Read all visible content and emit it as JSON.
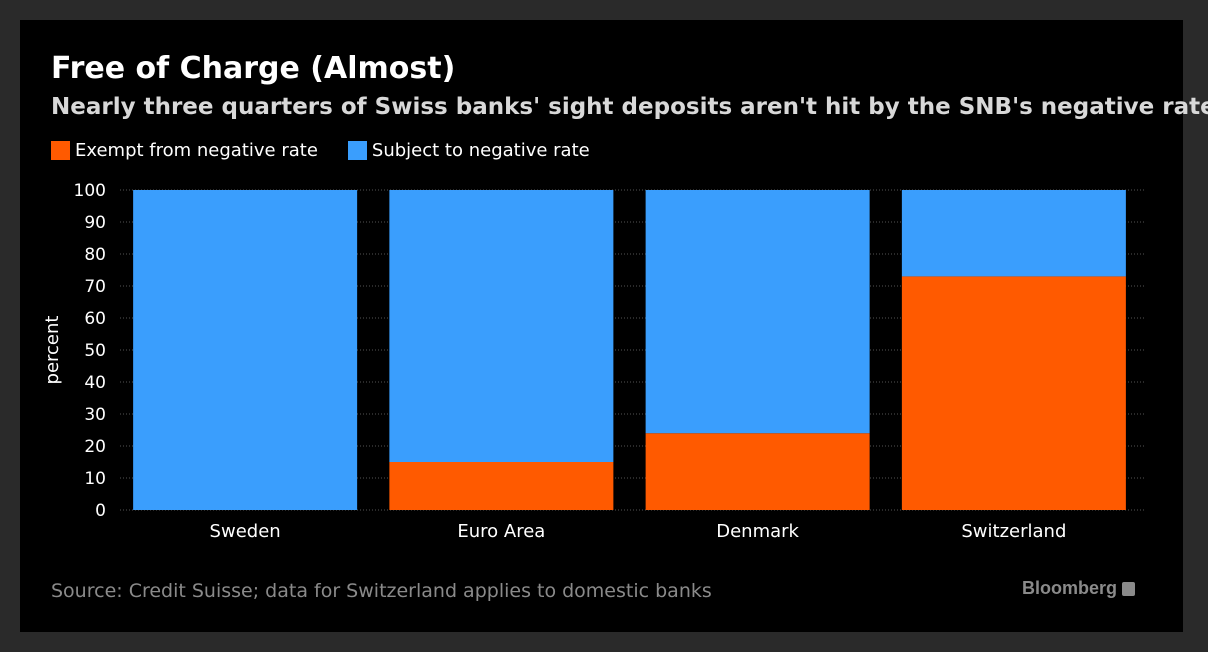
{
  "header": {
    "title": "Free of Charge (Almost)",
    "subtitle": "Nearly three quarters of Swiss banks' sight deposits aren't hit by the SNB's negative rate"
  },
  "footer": {
    "source": "Source: Credit Suisse; data for Switzerland applies to domestic banks",
    "brand": "Bloomberg"
  },
  "colors": {
    "exempt": "#ff5a00",
    "subject": "#3a9efd",
    "background": "#000000",
    "grid": "#555555",
    "text": "#ffffff"
  },
  "chart_data": {
    "type": "bar",
    "stacked": true,
    "title": "Free of Charge (Almost)",
    "subtitle": "Nearly three quarters of Swiss banks' sight deposits aren't hit by the SNB's negative rate",
    "categories": [
      "Sweden",
      "Euro Area",
      "Denmark",
      "Switzerland"
    ],
    "series": [
      {
        "name": "Exempt from negative rate",
        "values": [
          0,
          15,
          24,
          73
        ]
      },
      {
        "name": "Subject to negative rate",
        "values": [
          100,
          85,
          76,
          27
        ]
      }
    ],
    "xlabel": "",
    "ylabel": "percent",
    "ylim": [
      0,
      100
    ],
    "yticks": [
      "0",
      "10",
      "20",
      "30",
      "40",
      "50",
      "60",
      "70",
      "80",
      "90",
      "100"
    ],
    "grid": true,
    "legend_position": "top-left"
  }
}
